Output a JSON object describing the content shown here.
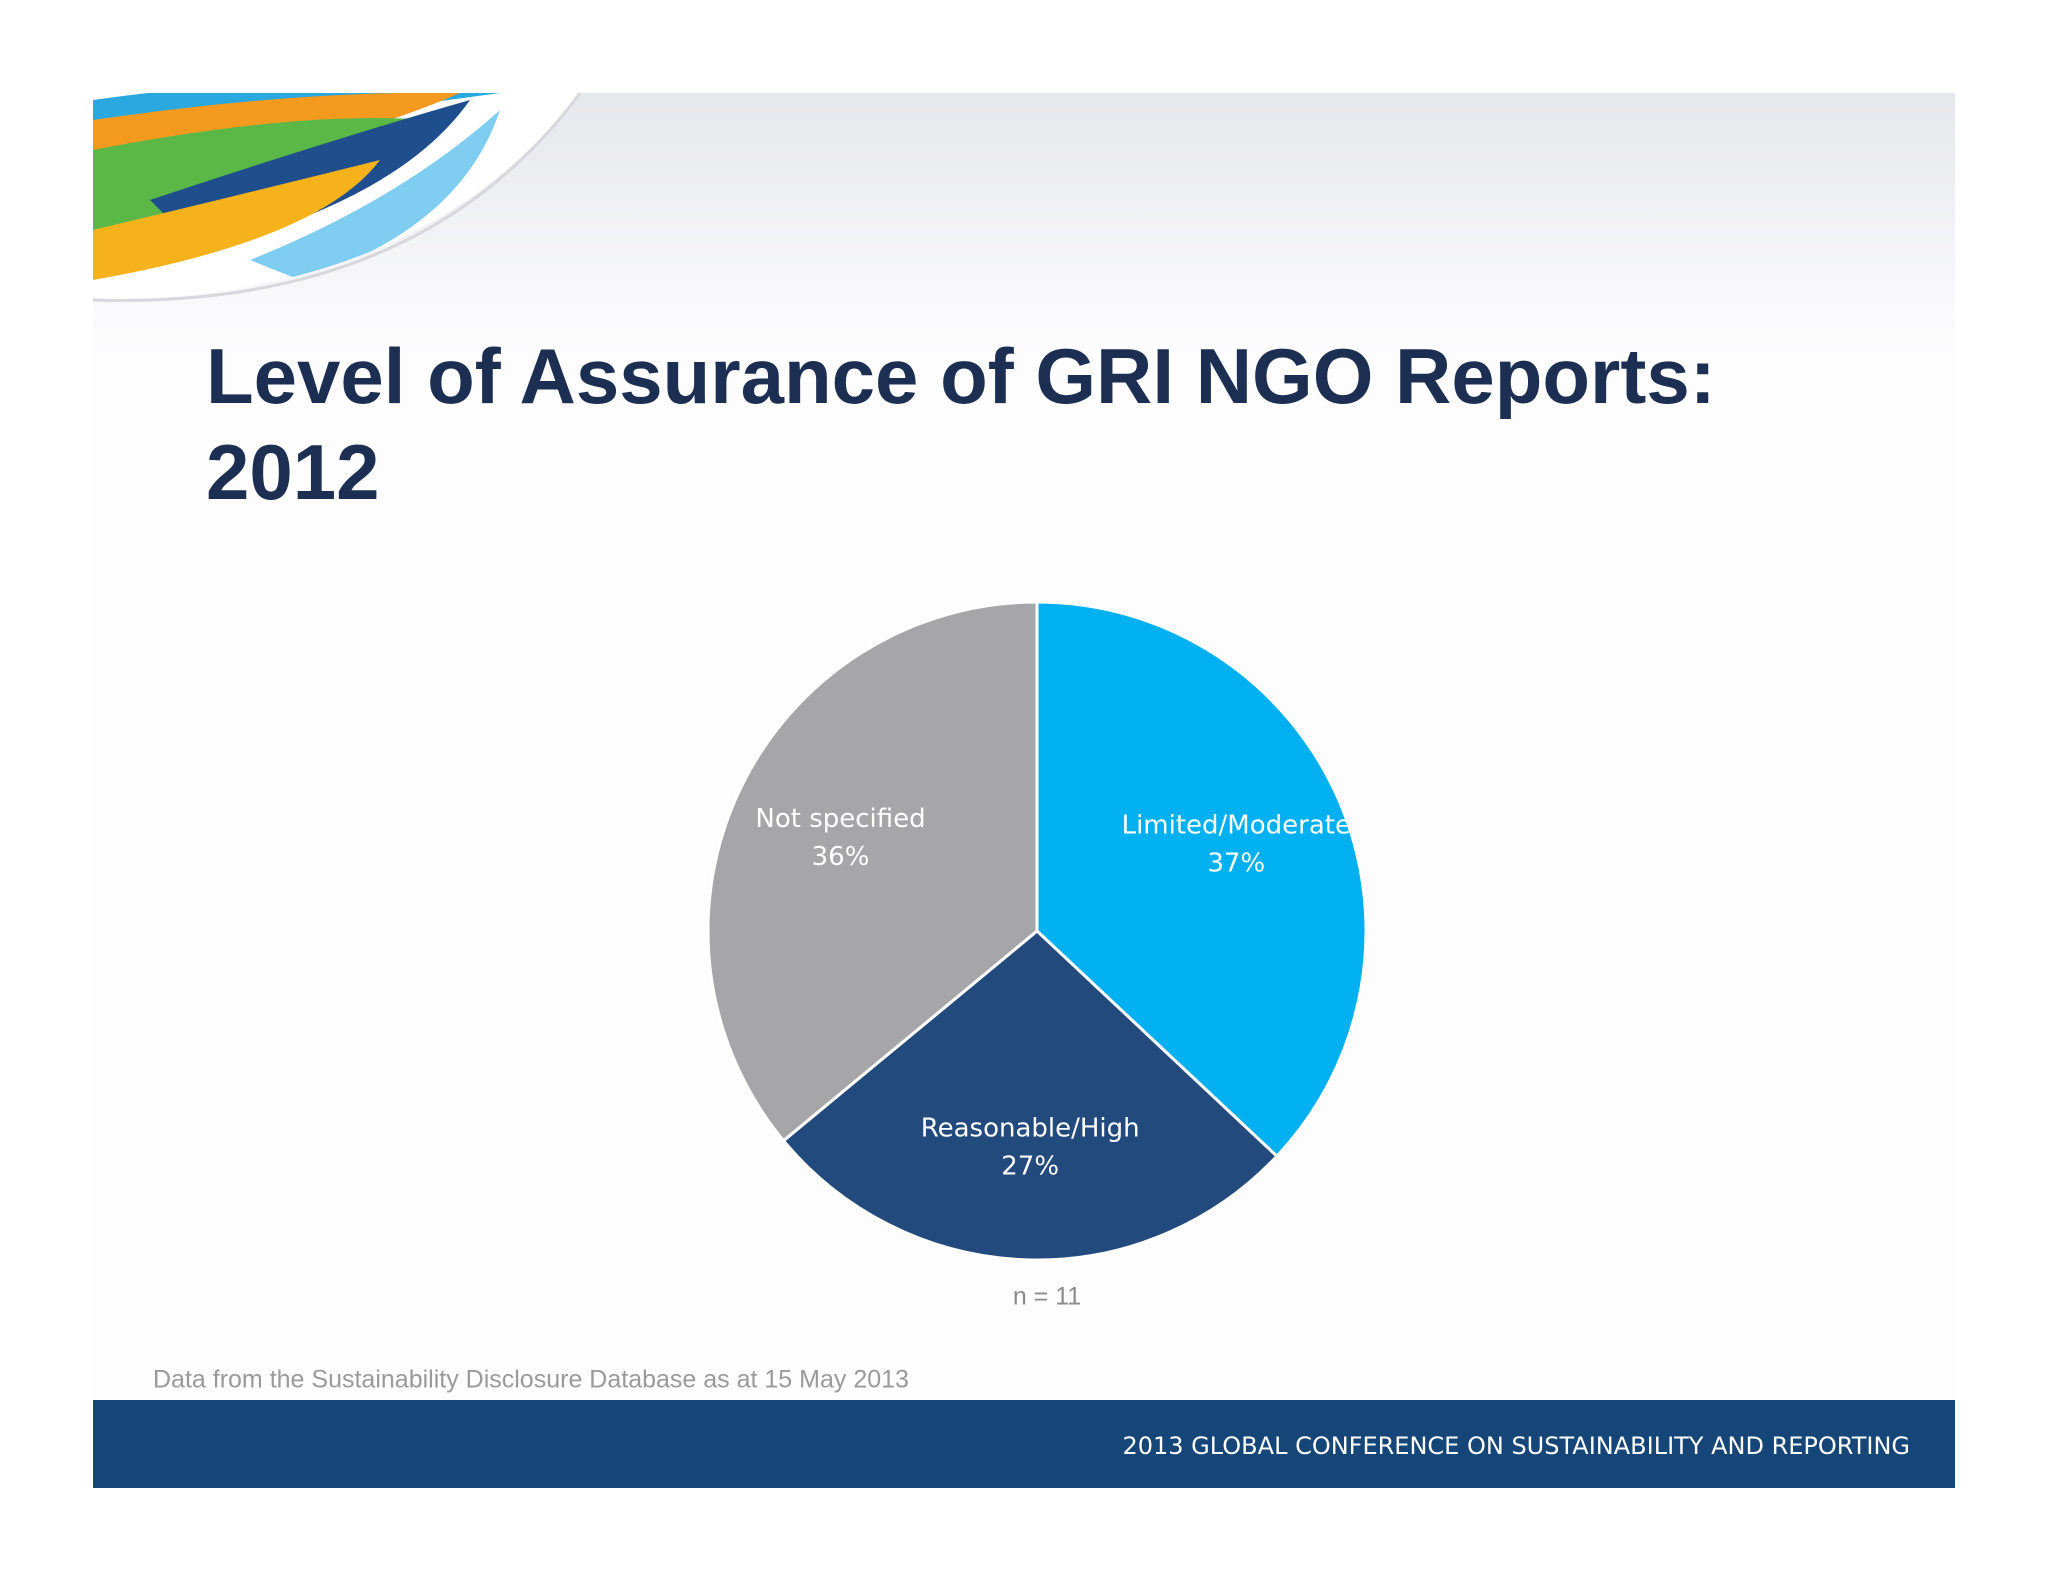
{
  "chart_data": {
    "type": "pie",
    "title": "Level of Assurance of GRI NGO Reports: 2012",
    "categories": [
      "Limited/Moderate",
      "Reasonable/High",
      "Not specified"
    ],
    "values": [
      37,
      27,
      36
    ],
    "value_labels": [
      "37%",
      "27%",
      "36%"
    ],
    "colors": [
      "#00b0f0",
      "#234a7c",
      "#a6a5a7"
    ],
    "note": "n = 11"
  },
  "source": "Data from the Sustainability Disclosure Database as at 15 May 2013",
  "footer": "2013 GLOBAL CONFERENCE ON SUSTAINABILITY AND REPORTING"
}
